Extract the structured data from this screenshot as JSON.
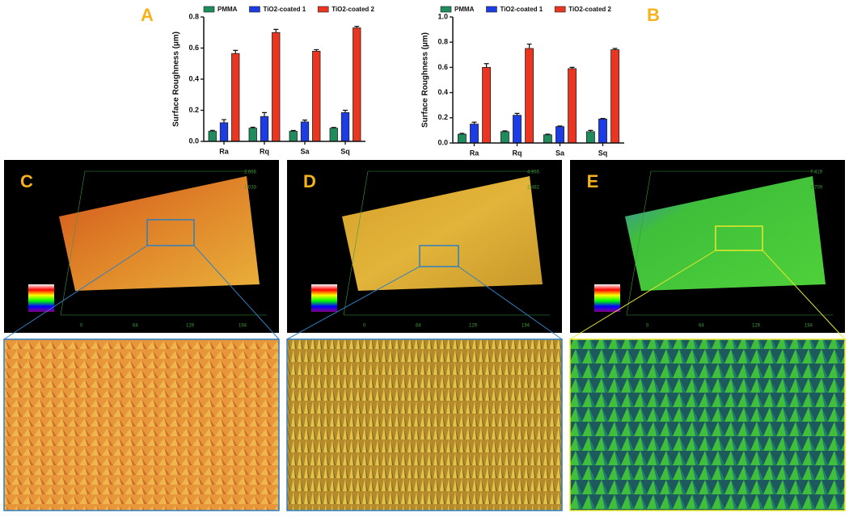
{
  "chart_data": [
    {
      "type": "bar",
      "panel_label": "A",
      "y_label": "Surface Roughness (µm)",
      "categories": [
        "Ra",
        "Rq",
        "Sa",
        "Sq"
      ],
      "series": [
        {
          "name": "PMMA",
          "color": "#1e8c5c",
          "values": [
            0.065,
            0.085,
            0.065,
            0.085
          ],
          "errors": [
            0.006,
            0.006,
            0.005,
            0.005
          ]
        },
        {
          "name": "TiO2-coated 1",
          "color": "#1c3de6",
          "values": [
            0.12,
            0.16,
            0.125,
            0.185
          ],
          "errors": [
            0.02,
            0.025,
            0.012,
            0.015
          ]
        },
        {
          "name": "TiO2-coated 2",
          "color": "#ea3520",
          "values": [
            0.565,
            0.7,
            0.58,
            0.73
          ],
          "errors": [
            0.02,
            0.02,
            0.01,
            0.01
          ]
        }
      ],
      "ylim": [
        0,
        0.8
      ],
      "yticks": [
        {
          "value": 0,
          "label": "0.0"
        },
        0.2,
        0.4,
        0.6,
        0.8
      ]
    },
    {
      "type": "bar",
      "panel_label": "B",
      "y_label": "Surface Roughness (µm)",
      "categories": [
        "Ra",
        "Rq",
        "Sa",
        "Sq"
      ],
      "series": [
        {
          "name": "PMMA",
          "color": "#1e8c5c",
          "values": [
            0.07,
            0.09,
            0.065,
            0.09
          ],
          "errors": [
            0.006,
            0.006,
            0.005,
            0.01
          ]
        },
        {
          "name": "TiO2-coated 1",
          "color": "#1c3de6",
          "values": [
            0.15,
            0.22,
            0.13,
            0.19
          ],
          "errors": [
            0.015,
            0.015,
            0.005,
            0.005
          ]
        },
        {
          "name": "TiO2-coated 2",
          "color": "#ea3520",
          "values": [
            0.6,
            0.75,
            0.59,
            0.74
          ],
          "errors": [
            0.03,
            0.035,
            0.01,
            0.01
          ]
        }
      ],
      "ylim": [
        0,
        1.0
      ],
      "yticks": [
        {
          "value": 0,
          "label": "0.0"
        },
        0.2,
        0.4,
        0.6,
        0.8,
        {
          "value": 1.0,
          "label": "1.0"
        }
      ]
    }
  ],
  "images": [
    {
      "panel_label": "C",
      "axis_labels": [
        "2.066",
        "1.033",
        "0",
        "64",
        "129",
        "194"
      ]
    },
    {
      "panel_label": "D",
      "axis_labels": [
        "4.965",
        "2.482",
        "0",
        "64",
        "129",
        "194"
      ]
    },
    {
      "panel_label": "E",
      "axis_labels": [
        "7.419",
        "3.709",
        "0",
        "64",
        "129",
        "194"
      ]
    }
  ]
}
